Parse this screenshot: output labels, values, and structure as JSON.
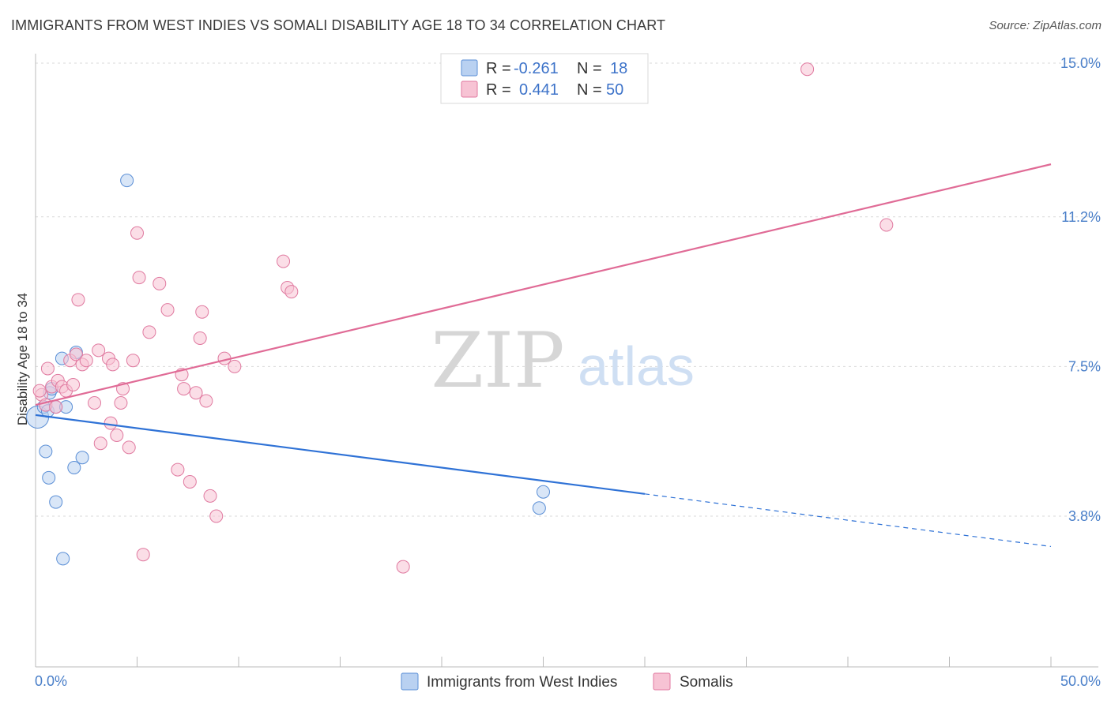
{
  "title": "IMMIGRANTS FROM WEST INDIES VS SOMALI DISABILITY AGE 18 TO 34 CORRELATION CHART",
  "source": "Source: ZipAtlas.com",
  "watermark": {
    "zip": "ZIP",
    "atlas": "atlas"
  },
  "legend_top": {
    "r_label": "R =",
    "n_label": "N =",
    "rows": [
      {
        "r": "-0.261",
        "n": "18"
      },
      {
        "r": "0.441",
        "n": "50"
      }
    ]
  },
  "chart_data": {
    "type": "scatter",
    "title": "IMMIGRANTS FROM WEST INDIES VS SOMALI DISABILITY AGE 18 TO 34 CORRELATION CHART",
    "xlabel": "",
    "ylabel": "Disability Age 18 to 34",
    "xlim": [
      0,
      50
    ],
    "ylim": [
      0,
      15.7
    ],
    "x_tick_labels": {
      "min": "0.0%",
      "max": "50.0%"
    },
    "y_ticks": [
      {
        "value": 3.8,
        "label": "3.8%"
      },
      {
        "value": 7.5,
        "label": "7.5%"
      },
      {
        "value": 11.2,
        "label": "11.2%"
      },
      {
        "value": 15.0,
        "label": "15.0%"
      }
    ],
    "series": [
      {
        "name": "Immigrants from West Indies",
        "color": "#5b8fd6",
        "fill": "#b9d1f1",
        "r": -0.261,
        "n": 18,
        "trend": {
          "x0": 0,
          "y0": 6.3,
          "x1": 30,
          "y1": 4.35,
          "dash_to_x": 50,
          "dash_to_y": 3.05
        },
        "points": [
          [
            0.1,
            6.25
          ],
          [
            0.4,
            6.5
          ],
          [
            0.6,
            6.4
          ],
          [
            0.7,
            6.85
          ],
          [
            0.8,
            6.95
          ],
          [
            1.0,
            6.5
          ],
          [
            1.3,
            7.7
          ],
          [
            1.5,
            6.5
          ],
          [
            2.0,
            7.85
          ],
          [
            0.5,
            5.4
          ],
          [
            0.65,
            4.75
          ],
          [
            1.9,
            5.0
          ],
          [
            2.3,
            5.25
          ],
          [
            1.0,
            4.15
          ],
          [
            1.35,
            2.75
          ],
          [
            4.5,
            12.1
          ],
          [
            24.8,
            4.0
          ],
          [
            25.0,
            4.4
          ]
        ]
      },
      {
        "name": "Somalis",
        "color": "#e07aa0",
        "fill": "#f7c3d4",
        "r": 0.441,
        "n": 50,
        "trend": {
          "x0": 0,
          "y0": 6.55,
          "x1": 50,
          "y1": 12.5
        },
        "points": [
          [
            0.3,
            6.8
          ],
          [
            0.5,
            6.55
          ],
          [
            0.6,
            7.45
          ],
          [
            0.8,
            7.0
          ],
          [
            1.0,
            6.5
          ],
          [
            1.1,
            7.15
          ],
          [
            1.3,
            7.0
          ],
          [
            1.5,
            6.9
          ],
          [
            1.7,
            7.65
          ],
          [
            1.85,
            7.05
          ],
          [
            2.0,
            7.8
          ],
          [
            2.1,
            9.15
          ],
          [
            2.3,
            7.55
          ],
          [
            2.5,
            7.65
          ],
          [
            2.9,
            6.6
          ],
          [
            3.1,
            7.9
          ],
          [
            3.2,
            5.6
          ],
          [
            3.6,
            7.7
          ],
          [
            3.7,
            6.1
          ],
          [
            3.8,
            7.55
          ],
          [
            4.0,
            5.8
          ],
          [
            4.2,
            6.6
          ],
          [
            4.3,
            6.95
          ],
          [
            4.6,
            5.5
          ],
          [
            4.8,
            7.65
          ],
          [
            5.0,
            10.8
          ],
          [
            5.1,
            9.7
          ],
          [
            5.3,
            2.85
          ],
          [
            5.6,
            8.35
          ],
          [
            6.1,
            9.55
          ],
          [
            6.5,
            8.9
          ],
          [
            7.0,
            4.95
          ],
          [
            7.2,
            7.3
          ],
          [
            7.3,
            6.95
          ],
          [
            7.6,
            4.65
          ],
          [
            7.9,
            6.85
          ],
          [
            8.1,
            8.2
          ],
          [
            8.2,
            8.85
          ],
          [
            8.4,
            6.65
          ],
          [
            8.6,
            4.3
          ],
          [
            8.9,
            3.8
          ],
          [
            9.3,
            7.7
          ],
          [
            9.8,
            7.5
          ],
          [
            12.2,
            10.1
          ],
          [
            12.4,
            9.45
          ],
          [
            12.6,
            9.35
          ],
          [
            18.1,
            2.55
          ],
          [
            38.0,
            14.85
          ],
          [
            41.9,
            11.0
          ],
          [
            0.2,
            6.9
          ]
        ]
      }
    ],
    "legend": {
      "placement": "top-center and bottom-center"
    }
  }
}
